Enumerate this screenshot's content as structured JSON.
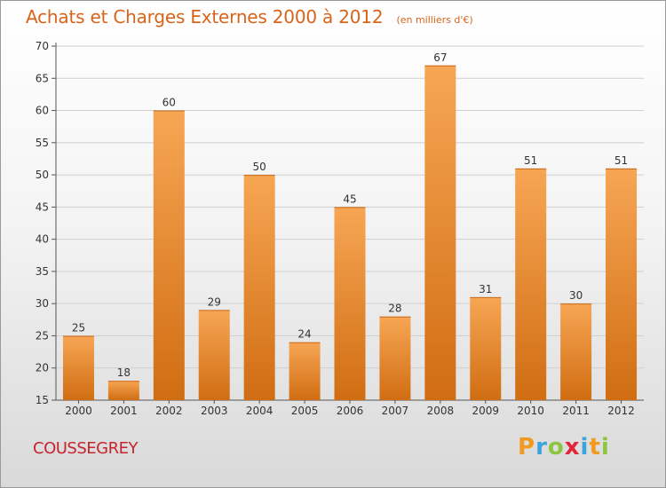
{
  "header": {
    "title": "Achats et Charges Externes 2000 à 2012",
    "subtitle": "(en milliers d'€)"
  },
  "commune": "COUSSEGREY",
  "brand": {
    "letters": [
      "P",
      "r",
      "o",
      "x",
      "i",
      "t",
      "i"
    ],
    "colors": [
      "#f29a1f",
      "#3aa4dc",
      "#8cc63f",
      "#e2233a",
      "#3aa4dc",
      "#f29a1f",
      "#8cc63f"
    ]
  },
  "chart_data": {
    "type": "bar",
    "categories": [
      "2000",
      "2001",
      "2002",
      "2003",
      "2004",
      "2005",
      "2006",
      "2007",
      "2008",
      "2009",
      "2010",
      "2011",
      "2012"
    ],
    "values": [
      25,
      18,
      60,
      29,
      50,
      24,
      45,
      28,
      67,
      31,
      51,
      30,
      51
    ],
    "data_labels": [
      "25",
      "18",
      "60",
      "29",
      "50",
      "24",
      "45",
      "28",
      "67",
      "31",
      "51",
      "30",
      "51"
    ],
    "yticks": [
      15,
      20,
      25,
      30,
      35,
      40,
      45,
      50,
      55,
      60,
      65,
      70
    ],
    "ylim": [
      15,
      70
    ],
    "grid": true,
    "legend": "none",
    "bar_color_top": "#f7a654",
    "bar_color_bottom": "#d06d12",
    "grid_color": "#cfcfcf",
    "text_color": "#333333"
  }
}
